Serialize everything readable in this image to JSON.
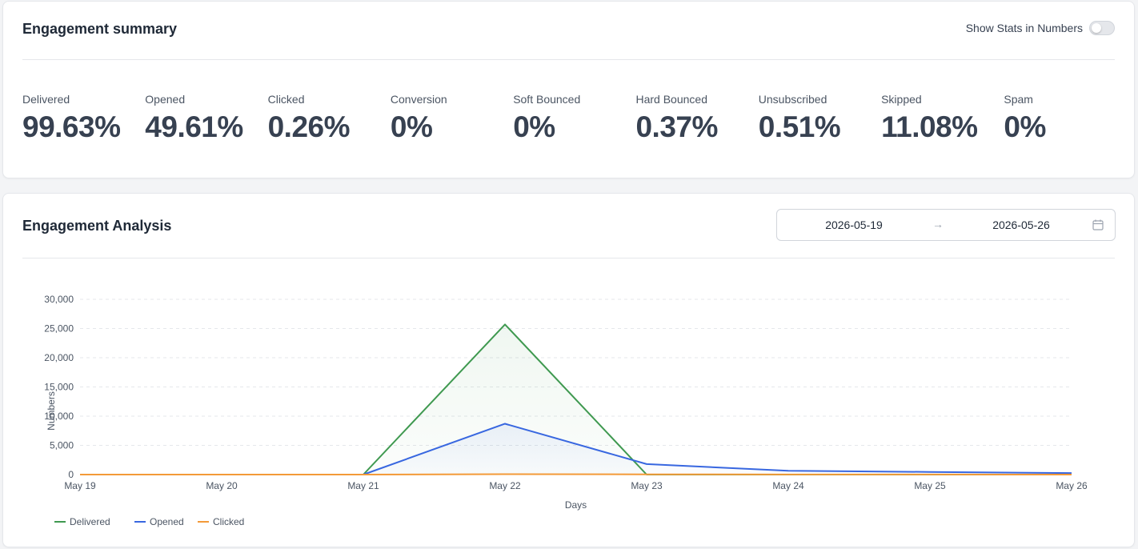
{
  "summary": {
    "title": "Engagement summary",
    "toggle_label": "Show Stats in Numbers",
    "toggle_on": false,
    "stats": [
      {
        "label": "Delivered",
        "value": "99.63%"
      },
      {
        "label": "Opened",
        "value": "49.61%"
      },
      {
        "label": "Clicked",
        "value": "0.26%"
      },
      {
        "label": "Conversion",
        "value": "0%"
      },
      {
        "label": "Soft Bounced",
        "value": "0%"
      },
      {
        "label": "Hard Bounced",
        "value": "0.37%"
      },
      {
        "label": "Unsubscribed",
        "value": "0.51%"
      },
      {
        "label": "Skipped",
        "value": "11.08%"
      },
      {
        "label": "Spam",
        "value": "0%"
      }
    ]
  },
  "analysis": {
    "title": "Engagement Analysis",
    "start_date": "2026-05-19",
    "end_date": "2026-05-26",
    "arrow_icon": "arrow-right-icon",
    "calendar_icon": "calendar-icon"
  },
  "chart_data": {
    "type": "line",
    "categories": [
      "May 19",
      "May 20",
      "May 21",
      "May 22",
      "May 23",
      "May 24",
      "May 25",
      "May 26"
    ],
    "xlabel": "Days",
    "ylabel": "Numbers",
    "ylim": [
      0,
      30000
    ],
    "yticks": [
      "0",
      "5,000",
      "10,000",
      "15,000",
      "20,000",
      "25,000",
      "30,000"
    ],
    "grid": true,
    "legend_position": "bottom-left",
    "series": [
      {
        "name": "Delivered",
        "color": "#3f9950",
        "values": [
          0,
          0,
          0,
          25700,
          0,
          0,
          0,
          0
        ]
      },
      {
        "name": "Opened",
        "color": "#3867e0",
        "values": [
          0,
          0,
          0,
          8700,
          1800,
          650,
          450,
          250
        ]
      },
      {
        "name": "Clicked",
        "color": "#f39a38",
        "values": [
          0,
          0,
          0,
          70,
          40,
          15,
          10,
          5
        ]
      }
    ]
  }
}
